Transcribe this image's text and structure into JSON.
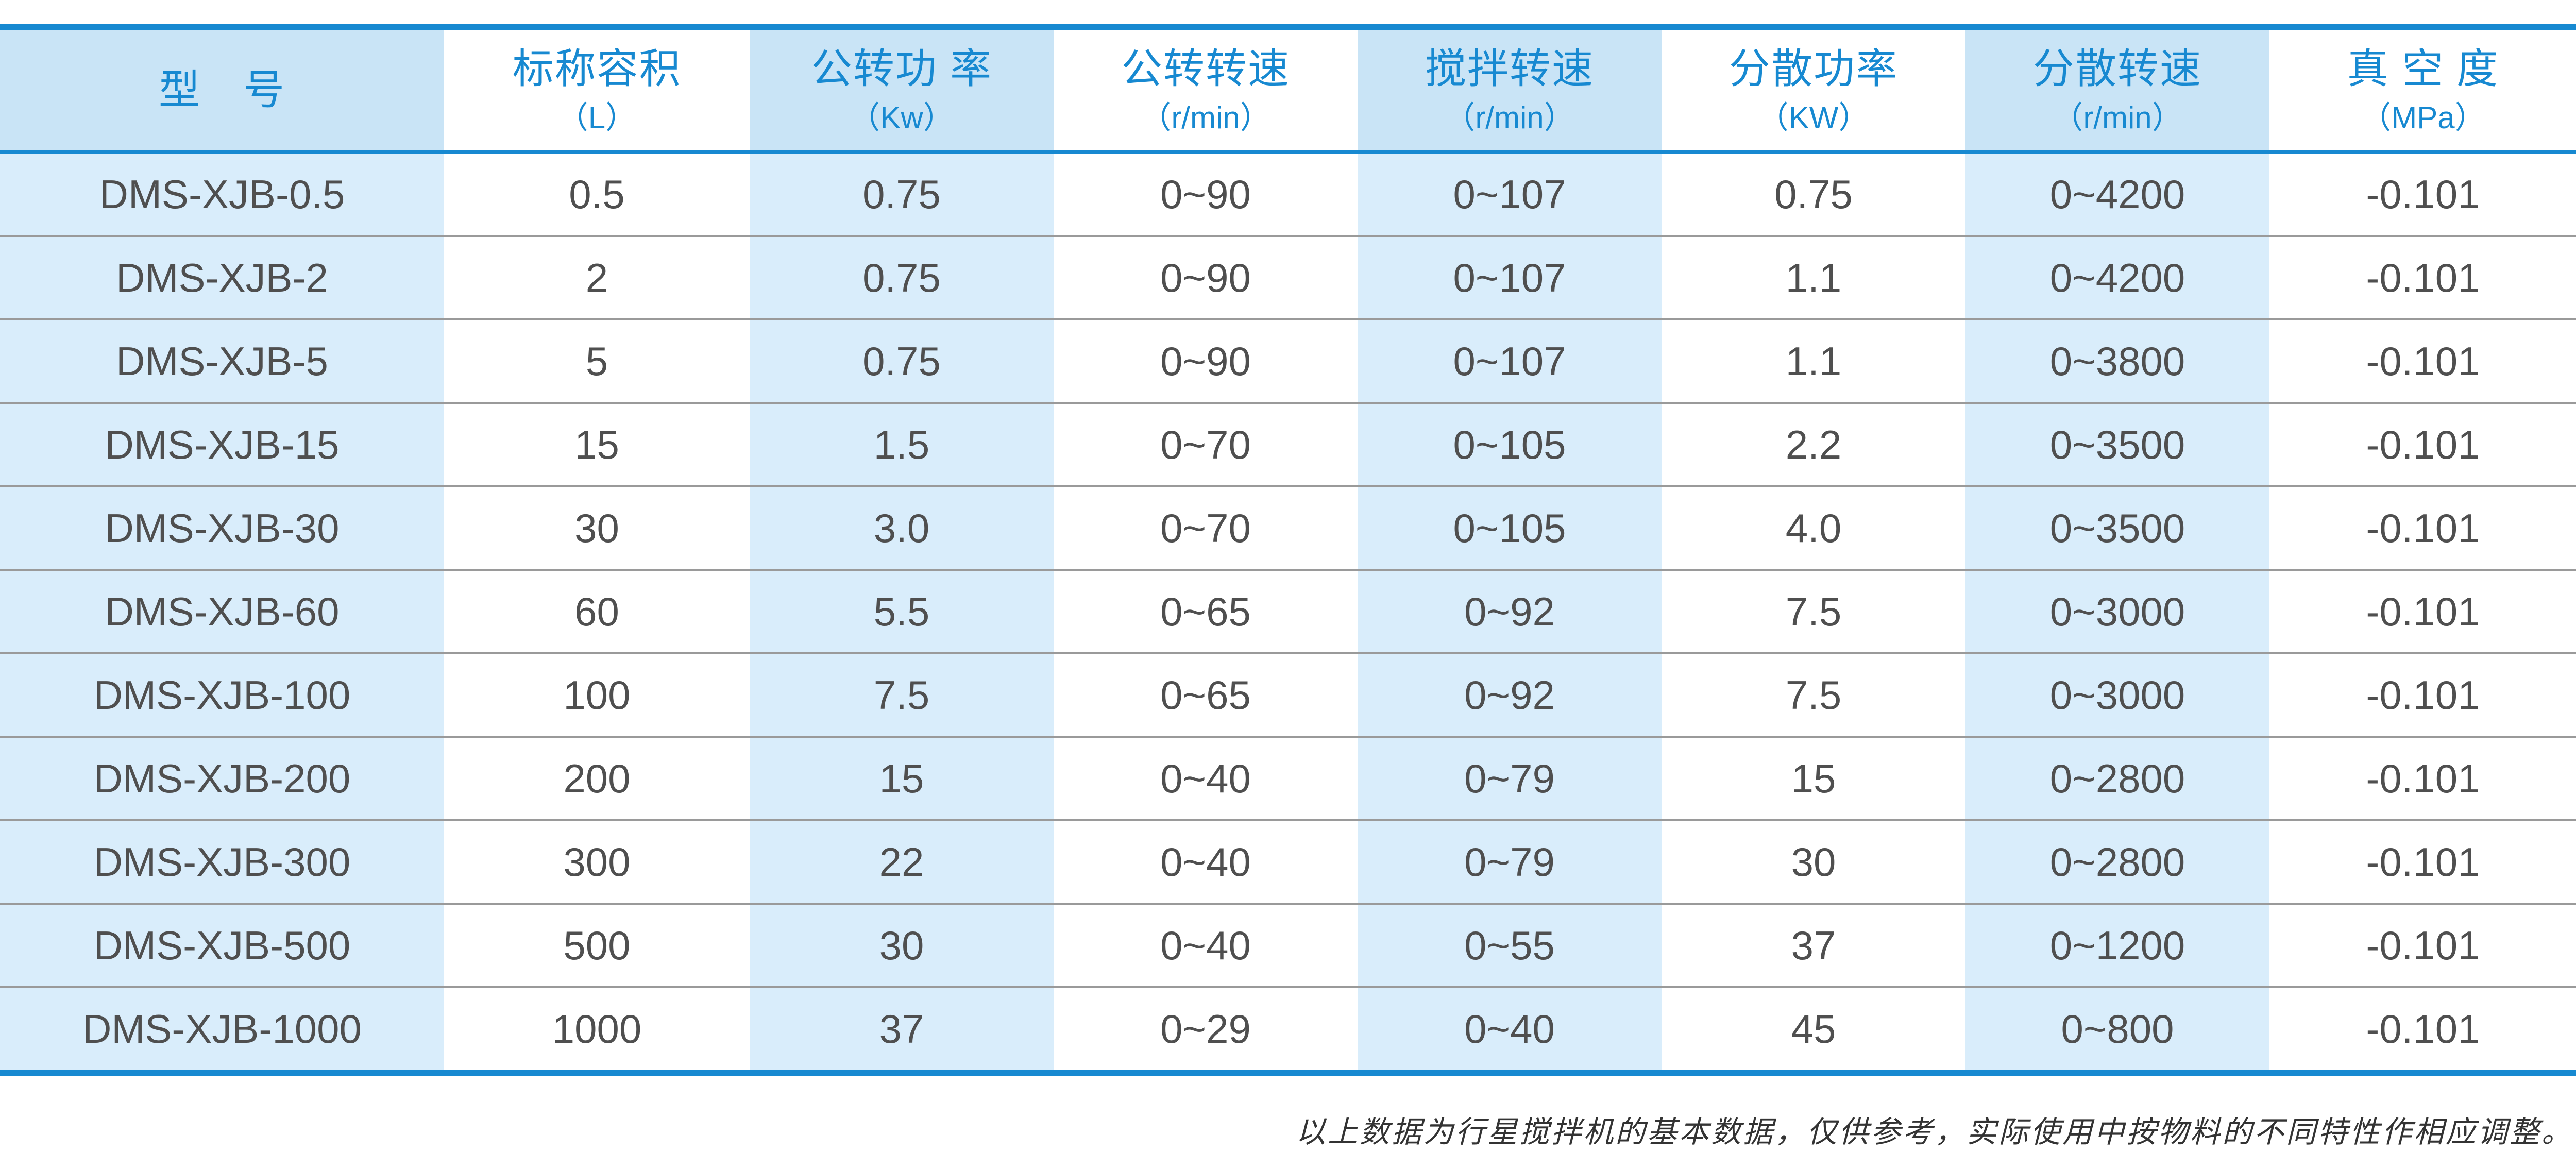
{
  "colors": {
    "accent_blue": "#1789d1",
    "header_cell_fill": "#c9e4f6",
    "body_cell_fill": "#d9edfb",
    "cell_text": "#4f4f4f",
    "row_separator": "#9a9a9a",
    "footer_text": "#333333"
  },
  "table": {
    "columns": [
      {
        "title": "型　号",
        "unit": ""
      },
      {
        "title": "标称容积",
        "unit": "（L）"
      },
      {
        "title": "公转功 率",
        "unit": "（Kw）"
      },
      {
        "title": "公转转速",
        "unit": "（r/min）"
      },
      {
        "title": "搅拌转速",
        "unit": "（r/min）"
      },
      {
        "title": "分散功率",
        "unit": "（KW）"
      },
      {
        "title": "分散转速",
        "unit": "（r/min）"
      },
      {
        "title": "真 空 度",
        "unit": "（MPa）"
      }
    ],
    "rows": [
      {
        "model": "DMS-XJB-0.5",
        "capacity": "0.5",
        "rev_power": "0.75",
        "rev_speed": "0~90",
        "stir_speed": "0~107",
        "disp_power": "0.75",
        "disp_speed": "0~4200",
        "vacuum": "-0.101"
      },
      {
        "model": "DMS-XJB-2",
        "capacity": "2",
        "rev_power": "0.75",
        "rev_speed": "0~90",
        "stir_speed": "0~107",
        "disp_power": "1.1",
        "disp_speed": "0~4200",
        "vacuum": "-0.101"
      },
      {
        "model": "DMS-XJB-5",
        "capacity": "5",
        "rev_power": "0.75",
        "rev_speed": "0~90",
        "stir_speed": "0~107",
        "disp_power": "1.1",
        "disp_speed": "0~3800",
        "vacuum": "-0.101"
      },
      {
        "model": "DMS-XJB-15",
        "capacity": "15",
        "rev_power": "1.5",
        "rev_speed": "0~70",
        "stir_speed": "0~105",
        "disp_power": "2.2",
        "disp_speed": "0~3500",
        "vacuum": "-0.101"
      },
      {
        "model": "DMS-XJB-30",
        "capacity": "30",
        "rev_power": "3.0",
        "rev_speed": "0~70",
        "stir_speed": "0~105",
        "disp_power": "4.0",
        "disp_speed": "0~3500",
        "vacuum": "-0.101"
      },
      {
        "model": "DMS-XJB-60",
        "capacity": "60",
        "rev_power": "5.5",
        "rev_speed": "0~65",
        "stir_speed": "0~92",
        "disp_power": "7.5",
        "disp_speed": "0~3000",
        "vacuum": "-0.101"
      },
      {
        "model": "DMS-XJB-100",
        "capacity": "100",
        "rev_power": "7.5",
        "rev_speed": "0~65",
        "stir_speed": "0~92",
        "disp_power": "7.5",
        "disp_speed": "0~3000",
        "vacuum": "-0.101"
      },
      {
        "model": "DMS-XJB-200",
        "capacity": "200",
        "rev_power": "15",
        "rev_speed": "0~40",
        "stir_speed": "0~79",
        "disp_power": "15",
        "disp_speed": "0~2800",
        "vacuum": "-0.101"
      },
      {
        "model": "DMS-XJB-300",
        "capacity": "300",
        "rev_power": "22",
        "rev_speed": "0~40",
        "stir_speed": "0~79",
        "disp_power": "30",
        "disp_speed": "0~2800",
        "vacuum": "-0.101"
      },
      {
        "model": "DMS-XJB-500",
        "capacity": "500",
        "rev_power": "30",
        "rev_speed": "0~40",
        "stir_speed": "0~55",
        "disp_power": "37",
        "disp_speed": "0~1200",
        "vacuum": "-0.101"
      },
      {
        "model": "DMS-XJB-1000",
        "capacity": "1000",
        "rev_power": "37",
        "rev_speed": "0~29",
        "stir_speed": "0~40",
        "disp_power": "45",
        "disp_speed": "0~800",
        "vacuum": "-0.101"
      }
    ]
  },
  "footer": {
    "note": "以上数据为行星搅拌机的基本数据，仅供参考，实际使用中按物料的不同特性作相应调整。"
  }
}
